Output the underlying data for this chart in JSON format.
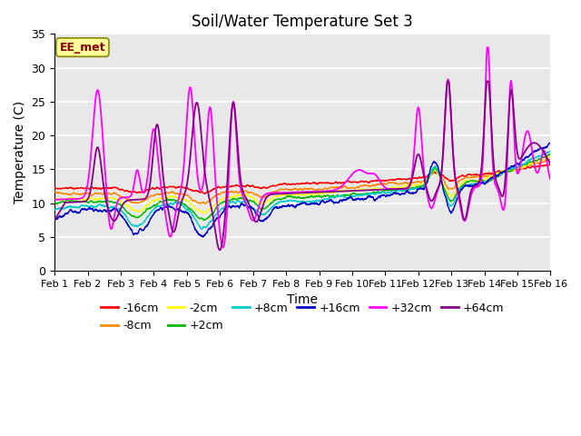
{
  "title": "Soil/Water Temperature Set 3",
  "xlabel": "Time",
  "ylabel": "Temperature (C)",
  "xlim": [
    0,
    15
  ],
  "ylim": [
    0,
    35
  ],
  "yticks": [
    0,
    5,
    10,
    15,
    20,
    25,
    30,
    35
  ],
  "xtick_labels": [
    "Feb 1",
    "Feb 2",
    "Feb 3",
    "Feb 4",
    "Feb 5",
    "Feb 6",
    "Feb 7",
    "Feb 8",
    "Feb 9",
    "Feb 10",
    "Feb 11",
    "Feb 12",
    "Feb 13",
    "Feb 14",
    "Feb 15",
    "Feb 16"
  ],
  "series_colors": {
    "-16cm": "#ff0000",
    "-8cm": "#ff8800",
    "-2cm": "#ffff00",
    "+2cm": "#00bb00",
    "+8cm": "#00cccc",
    "+16cm": "#0000cc",
    "+32cm": "#ff00ff",
    "+64cm": "#880088"
  },
  "legend_label": "EE_met",
  "plot_bg": "#e8e8e8",
  "title_fontsize": 12,
  "axis_fontsize": 10,
  "tick_fontsize": 9
}
